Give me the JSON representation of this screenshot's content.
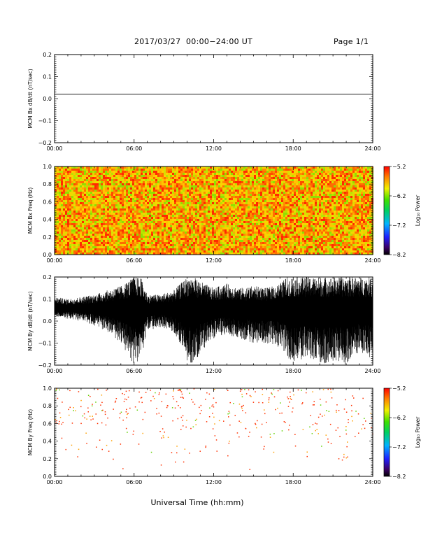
{
  "header": {
    "title": "2017/03/27  00:00−24:00 UT",
    "page": "Page 1/1"
  },
  "x_axis_label": "Universal Time (hh:mm)",
  "chart_data": [
    {
      "type": "line",
      "ylabel": "MCM Bx dB/dt (nT/sec)",
      "xlim": [
        0,
        24
      ],
      "xticks": [
        "00:00",
        "06:00",
        "12:00",
        "18:00",
        "24:00"
      ],
      "ylim": [
        -0.2,
        0.2
      ],
      "yticks": [
        "0.2",
        "0.1",
        "0.0",
        "−0.1",
        "−0.2"
      ],
      "series": [
        {
          "x": [
            0,
            24
          ],
          "y": [
            0.02,
            0.02
          ]
        }
      ]
    },
    {
      "type": "heatmap",
      "ylabel": "MCM Bx Freq (Hz)",
      "xlim": [
        0,
        24
      ],
      "xticks": [
        "00:00",
        "06:00",
        "12:00",
        "18:00",
        "24:00"
      ],
      "ylim": [
        0,
        1.0
      ],
      "yticks": [
        "1.0",
        "0.8",
        "0.6",
        "0.4",
        "0.2",
        "0.0"
      ],
      "fill": "dense",
      "colorbar": {
        "label": "Log₁₀ Power",
        "ticks": [
          "−5.2",
          "−6.2",
          "−7.2",
          "−8.2"
        ],
        "range": [
          -8.2,
          -5.2
        ]
      }
    },
    {
      "type": "line",
      "ylabel": "MCM By dB/dt (nT/sec)",
      "xlim": [
        0,
        24
      ],
      "xticks": [
        "00:00",
        "06:00",
        "12:00",
        "18:00",
        "24:00"
      ],
      "ylim": [
        -0.2,
        0.2
      ],
      "yticks": [
        "0.2",
        "0.1",
        "0.0",
        "−0.1",
        "−0.2"
      ],
      "envelope": {
        "x": [
          0,
          1,
          2,
          3,
          4,
          5,
          5.5,
          6,
          6.5,
          7,
          8,
          9,
          10,
          10.5,
          11,
          12,
          13,
          14,
          15,
          16,
          17,
          17.5,
          18,
          19,
          20,
          21,
          22,
          23,
          24
        ],
        "upper": [
          0.11,
          0.1,
          0.11,
          0.12,
          0.14,
          0.16,
          0.18,
          0.2,
          0.2,
          0.12,
          0.12,
          0.14,
          0.2,
          0.2,
          0.18,
          0.15,
          0.17,
          0.15,
          0.16,
          0.15,
          0.17,
          0.2,
          0.2,
          0.2,
          0.2,
          0.2,
          0.2,
          0.2,
          0.2
        ],
        "lower": [
          0.02,
          0.01,
          0.0,
          -0.02,
          -0.05,
          -0.1,
          -0.15,
          -0.2,
          -0.18,
          -0.04,
          -0.03,
          -0.05,
          -0.18,
          -0.2,
          -0.14,
          -0.08,
          -0.06,
          -0.08,
          -0.1,
          -0.1,
          -0.12,
          -0.16,
          -0.2,
          -0.16,
          -0.2,
          -0.18,
          -0.2,
          -0.14,
          -0.18
        ]
      }
    },
    {
      "type": "heatmap",
      "ylabel": "MCM By Freq (Hz)",
      "xlim": [
        0,
        24
      ],
      "xticks": [
        "00:00",
        "06:00",
        "12:00",
        "18:00",
        "24:00"
      ],
      "ylim": [
        0,
        1.0
      ],
      "yticks": [
        "1.0",
        "0.8",
        "0.6",
        "0.4",
        "0.2",
        "0.0"
      ],
      "fill": "sparse",
      "colorbar": {
        "label": "Log₁₀ Power",
        "ticks": [
          "−5.2",
          "−6.2",
          "−7.2",
          "−8.2"
        ],
        "range": [
          -8.2,
          -5.2
        ]
      }
    }
  ]
}
